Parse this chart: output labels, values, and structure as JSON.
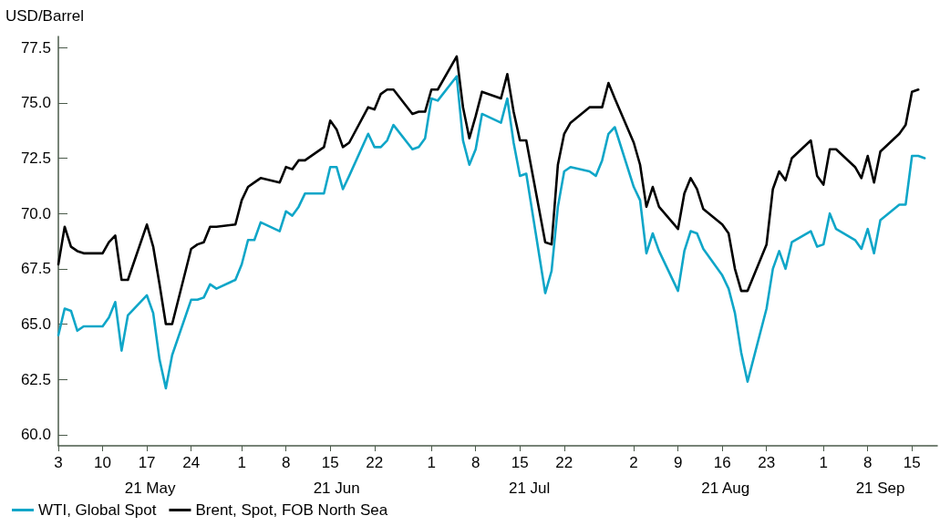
{
  "chart_data": {
    "type": "line",
    "ylabel": "USD/Barrel",
    "x": [
      "--05-03",
      "--05-04",
      "--05-05",
      "--05-06",
      "--05-07",
      "--05-10",
      "--05-11",
      "--05-12",
      "--05-13",
      "--05-14",
      "--05-17",
      "--05-18",
      "--05-19",
      "--05-20",
      "--05-21",
      "--05-24",
      "--05-25",
      "--05-26",
      "--05-27",
      "--05-28",
      "--05-31",
      "--06-01",
      "--06-02",
      "--06-03",
      "--06-04",
      "--06-07",
      "--06-08",
      "--06-09",
      "--06-10",
      "--06-11",
      "--06-14",
      "--06-15",
      "--06-16",
      "--06-17",
      "--06-18",
      "--06-21",
      "--06-22",
      "--06-23",
      "--06-24",
      "--06-25",
      "--06-28",
      "--06-29",
      "--06-30",
      "--07-01",
      "--07-02",
      "--07-05",
      "--07-06",
      "--07-07",
      "--07-08",
      "--07-09",
      "--07-12",
      "--07-13",
      "--07-14",
      "--07-15",
      "--07-16",
      "--07-19",
      "--07-20",
      "--07-21",
      "--07-22",
      "--07-23",
      "--07-26",
      "--07-27",
      "--07-28",
      "--07-29",
      "--07-30",
      "--08-02",
      "--08-03",
      "--08-04",
      "--08-05",
      "--08-06",
      "--08-09",
      "--08-10",
      "--08-11",
      "--08-12",
      "--08-13",
      "--08-16",
      "--08-17",
      "--08-18",
      "--08-19",
      "--08-20",
      "--08-23",
      "--08-24",
      "--08-25",
      "--08-26",
      "--08-27",
      "--08-30",
      "--08-31",
      "--09-01",
      "--09-02",
      "--09-03",
      "--09-06",
      "--09-07",
      "--09-08",
      "--09-09",
      "--09-10",
      "--09-13",
      "--09-14",
      "--09-15",
      "--09-16",
      "--09-17"
    ],
    "series": [
      {
        "name": "WTI, Global Spot",
        "color": "#0fa6c8",
        "values": [
          64.5,
          65.7,
          65.6,
          64.7,
          64.9,
          64.9,
          65.3,
          66.0,
          63.8,
          65.4,
          66.3,
          65.5,
          63.4,
          62.1,
          63.6,
          66.1,
          66.1,
          66.2,
          66.8,
          66.6,
          67.0,
          67.7,
          68.8,
          68.8,
          69.6,
          69.2,
          70.1,
          69.9,
          70.3,
          70.9,
          70.9,
          72.1,
          72.1,
          71.1,
          71.7,
          73.6,
          73.0,
          73.0,
          73.3,
          74.0,
          72.9,
          73.0,
          73.4,
          75.2,
          75.1,
          76.2,
          73.3,
          72.2,
          72.9,
          74.5,
          74.1,
          75.2,
          73.2,
          71.7,
          71.8,
          66.4,
          67.4,
          70.3,
          71.9,
          72.1,
          71.9,
          71.7,
          72.4,
          73.6,
          73.9,
          71.2,
          70.6,
          68.2,
          69.1,
          68.3,
          66.5,
          68.3,
          69.2,
          69.1,
          68.4,
          67.2,
          66.6,
          65.5,
          63.7,
          62.4,
          65.7,
          67.5,
          68.3,
          67.5,
          68.7,
          69.2,
          68.5,
          68.6,
          70.0,
          69.3,
          68.8,
          68.4,
          69.3,
          68.2,
          69.7,
          70.4,
          70.4,
          72.6,
          72.6,
          72.5
        ]
      },
      {
        "name": "Brent, Spot, FOB North Sea",
        "color": "#000000",
        "values": [
          67.7,
          69.4,
          68.5,
          68.3,
          68.2,
          68.2,
          68.7,
          69.0,
          67.0,
          67.0,
          69.5,
          68.5,
          66.8,
          65.0,
          65.0,
          68.4,
          68.6,
          68.7,
          69.4,
          69.4,
          69.5,
          70.6,
          71.2,
          71.4,
          71.6,
          71.4,
          72.1,
          72.0,
          72.4,
          72.4,
          73.0,
          74.2,
          73.8,
          73.0,
          73.2,
          74.8,
          74.7,
          75.4,
          75.6,
          75.6,
          74.5,
          74.6,
          74.6,
          75.6,
          75.6,
          77.1,
          74.8,
          73.4,
          74.4,
          75.5,
          75.2,
          76.3,
          74.6,
          73.3,
          73.3,
          68.7,
          68.6,
          72.2,
          73.6,
          74.1,
          74.8,
          74.8,
          74.8,
          75.9,
          75.2,
          73.2,
          72.2,
          70.3,
          71.2,
          70.3,
          69.3,
          70.9,
          71.6,
          71.1,
          70.2,
          69.5,
          69.1,
          67.5,
          66.5,
          66.5,
          68.6,
          71.1,
          71.9,
          71.5,
          72.5,
          73.3,
          71.7,
          71.3,
          72.9,
          72.9,
          72.1,
          71.6,
          72.6,
          71.4,
          72.8,
          73.6,
          74.0,
          75.5,
          75.6,
          null
        ]
      }
    ],
    "xlim": [
      "--05-03",
      "--09-19"
    ],
    "xticks": [
      {
        "value": "--05-03",
        "label": "3"
      },
      {
        "value": "--05-10",
        "label": "10"
      },
      {
        "value": "--05-17",
        "label": "17"
      },
      {
        "value": "--05-24",
        "label": "24"
      },
      {
        "value": "--06-01",
        "label": "1"
      },
      {
        "value": "--06-08",
        "label": "8"
      },
      {
        "value": "--06-15",
        "label": "15"
      },
      {
        "value": "--06-22",
        "label": "22"
      },
      {
        "value": "--07-01",
        "label": "1"
      },
      {
        "value": "--07-08",
        "label": "8"
      },
      {
        "value": "--07-15",
        "label": "15"
      },
      {
        "value": "--07-22",
        "label": "22"
      },
      {
        "value": "--08-02",
        "label": "2"
      },
      {
        "value": "--08-09",
        "label": "9"
      },
      {
        "value": "--08-16",
        "label": "16"
      },
      {
        "value": "--08-23",
        "label": "23"
      },
      {
        "value": "--09-01",
        "label": "1"
      },
      {
        "value": "--09-08",
        "label": "8"
      },
      {
        "value": "--09-15",
        "label": "15"
      }
    ],
    "ylim": [
      59.5,
      78
    ],
    "yticks": [
      {
        "value": 60,
        "label": "60.0"
      },
      {
        "value": 62.5,
        "label": "62.5"
      },
      {
        "value": 65,
        "label": "65.0"
      },
      {
        "value": 67.5,
        "label": "67.5"
      },
      {
        "value": 70,
        "label": "70.0"
      },
      {
        "value": 72.5,
        "label": "72.5"
      },
      {
        "value": 75,
        "label": "75.0"
      },
      {
        "value": 77.5,
        "label": "77.5"
      }
    ],
    "annotations": [
      "21 May",
      "21 Jun",
      "21 Jul",
      "21 Aug",
      "21 Sep"
    ],
    "grid": false,
    "legend": "bottom left",
    "marker": "none",
    "line_style": "solid"
  }
}
